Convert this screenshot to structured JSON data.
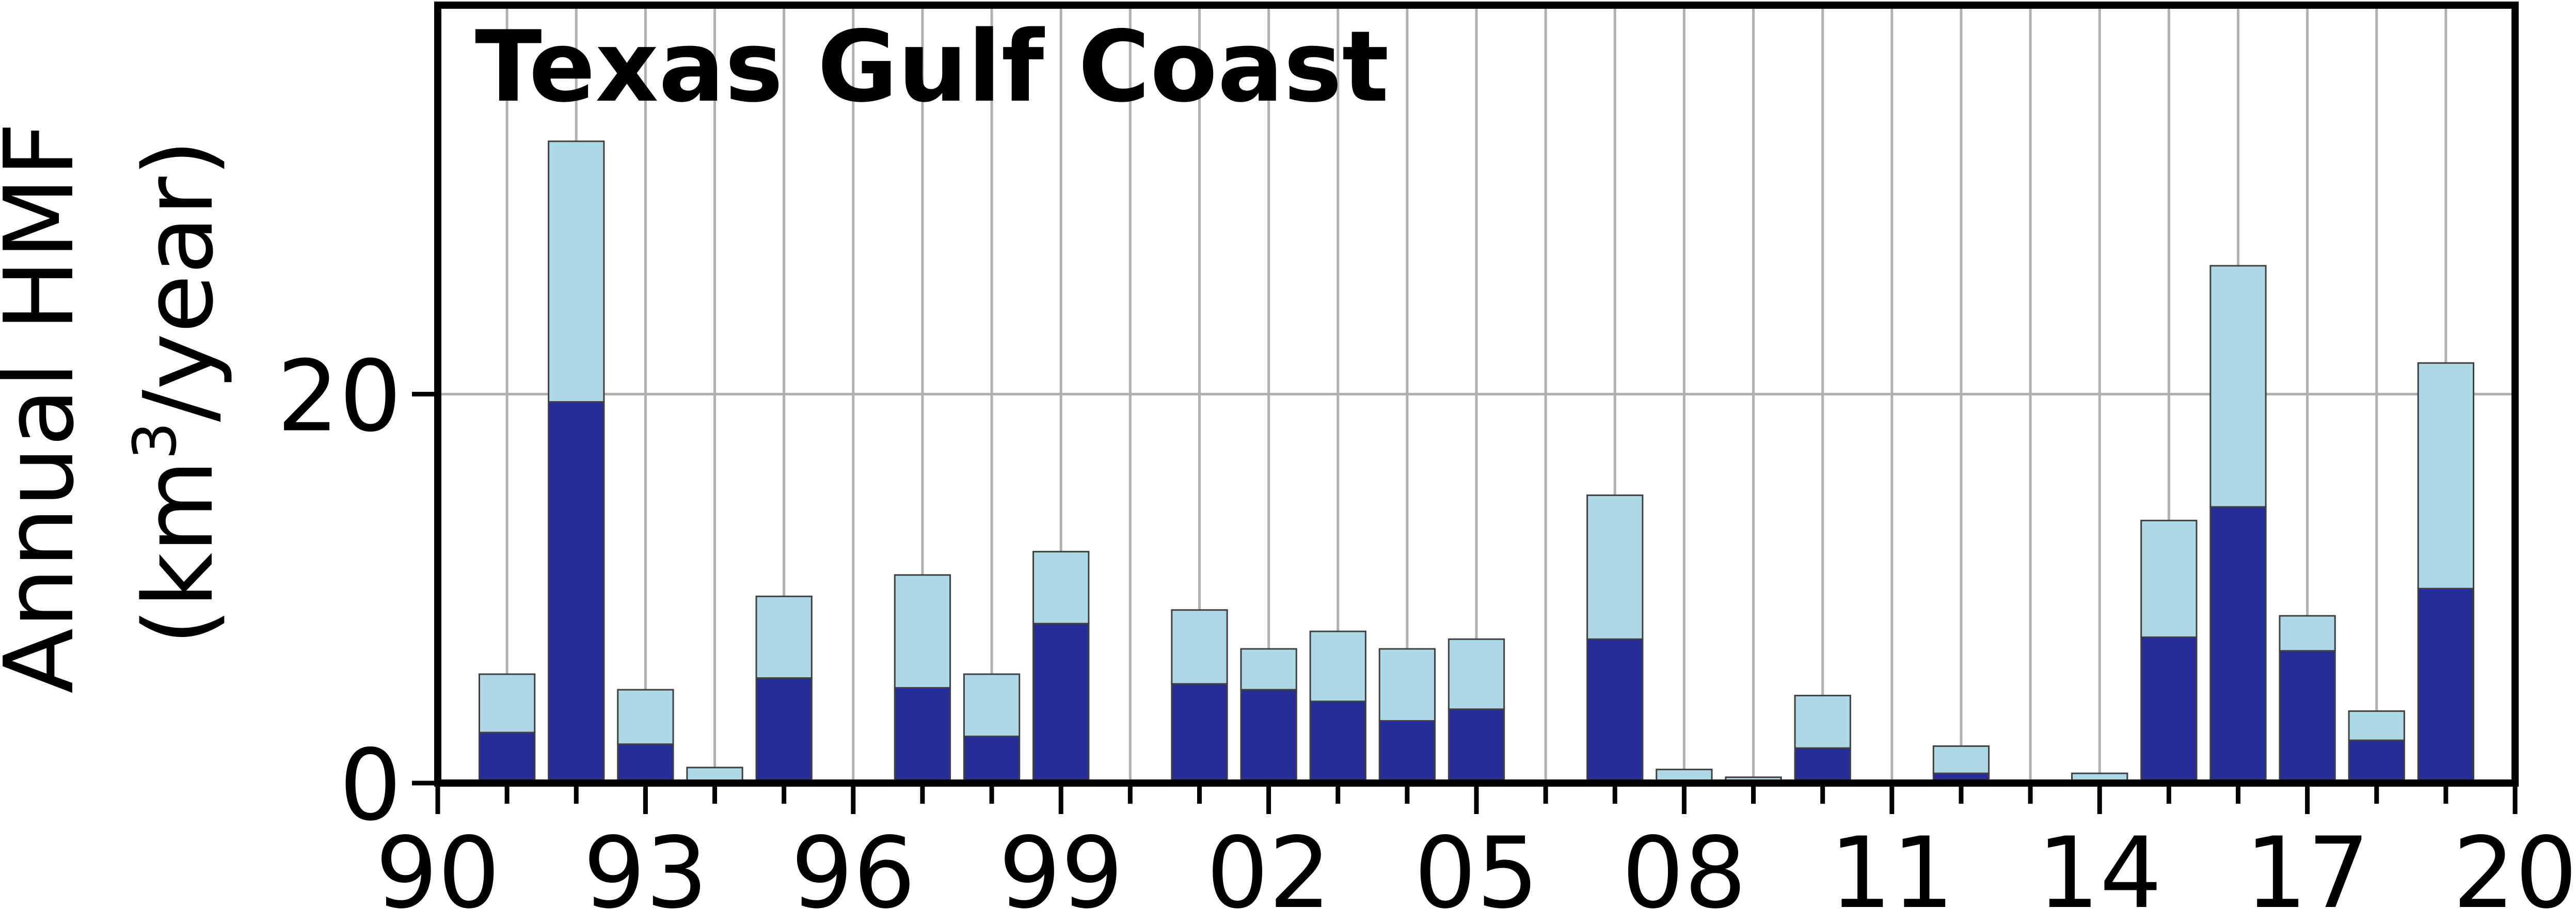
{
  "chart_data": {
    "type": "bar",
    "title": "Texas Gulf Coast",
    "ylabel_line1": "Annual HMF",
    "ylabel_line2_prefix": "(km",
    "ylabel_line2_sup": "3",
    "ylabel_line2_suffix": "/year)",
    "xlim": [
      1990,
      2020
    ],
    "ylim": [
      0,
      40
    ],
    "x_tick_values": [
      1990,
      1993,
      1996,
      1999,
      2002,
      2005,
      2008,
      2011,
      2014,
      2017,
      2020
    ],
    "x_tick_labels": [
      "90",
      "93",
      "96",
      "99",
      "02",
      "05",
      "08",
      "11",
      "14",
      "17",
      "20"
    ],
    "y_tick_values": [
      0,
      20
    ],
    "y_tick_labels": [
      "0",
      "20"
    ],
    "grid": true,
    "colors": {
      "dark": "#262d96",
      "light": "#add8e6",
      "edge": "#404040",
      "grid": "#b0b0b0"
    },
    "years": [
      1991,
      1992,
      1993,
      1994,
      1995,
      1996,
      1997,
      1998,
      1999,
      2000,
      2001,
      2002,
      2003,
      2004,
      2005,
      2006,
      2007,
      2008,
      2009,
      2010,
      2011,
      2012,
      2013,
      2014,
      2015,
      2016,
      2017,
      2018,
      2019
    ],
    "series": [
      {
        "values": [
          2.6,
          19.6,
          2.0,
          0,
          5.4,
          0,
          4.9,
          2.4,
          8.2,
          0,
          5.1,
          4.8,
          4.2,
          3.2,
          3.8,
          0,
          7.4,
          0,
          0,
          1.8,
          0,
          0.5,
          0,
          0,
          7.5,
          14.2,
          6.8,
          2.2,
          10.0
        ]
      },
      {
        "values": [
          3.0,
          13.4,
          2.8,
          0.8,
          4.2,
          0,
          5.8,
          3.2,
          3.7,
          0,
          3.8,
          2.1,
          3.6,
          3.7,
          3.6,
          0,
          7.4,
          0.7,
          0.3,
          2.7,
          0,
          1.4,
          0,
          0.5,
          6.0,
          12.4,
          1.8,
          1.5,
          11.6
        ]
      }
    ]
  }
}
